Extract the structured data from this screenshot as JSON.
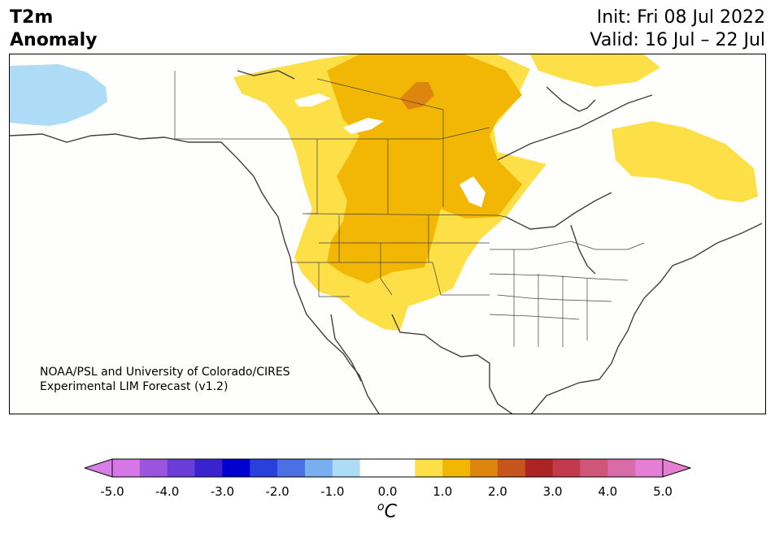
{
  "title": {
    "line1": "T2m",
    "line2": "Anomaly"
  },
  "dates": {
    "init": "Init: Fri 08 Jul 2022",
    "valid": "Valid: 16 Jul – 22 Jul"
  },
  "credit": {
    "line1": "NOAA/PSL and University of Colorado/CIRES",
    "line2": "Experimental LIM Forecast (v1.2)"
  },
  "colorbar": {
    "unit_sup": "o",
    "unit": "C",
    "ticks": [
      "-5.0",
      "-4.0",
      "-3.0",
      "-2.0",
      "-1.0",
      "0.0",
      "1.0",
      "2.0",
      "3.0",
      "4.0",
      "5.0"
    ],
    "low_extend_color": "#d77ee8",
    "high_extend_color": "#e87ed2",
    "colors": [
      "#d577e6",
      "#9a55dc",
      "#6a3cd8",
      "#3a22cf",
      "#0000cf",
      "#2a40dc",
      "#4a70e4",
      "#78b0ef",
      "#aedcf6",
      "#ffffff",
      "#ffffff",
      "#fde047",
      "#f2b705",
      "#dd850f",
      "#c5551a",
      "#ad2424",
      "#c23a4c",
      "#cf5678",
      "#d96ba8",
      "#e57fd3"
    ]
  },
  "map_colors": {
    "land": "#fefefc",
    "coast": "#404040",
    "warm1": "#fde047",
    "warm2": "#f2b705",
    "warm3": "#dd850f",
    "cool1": "#aedcf6"
  }
}
